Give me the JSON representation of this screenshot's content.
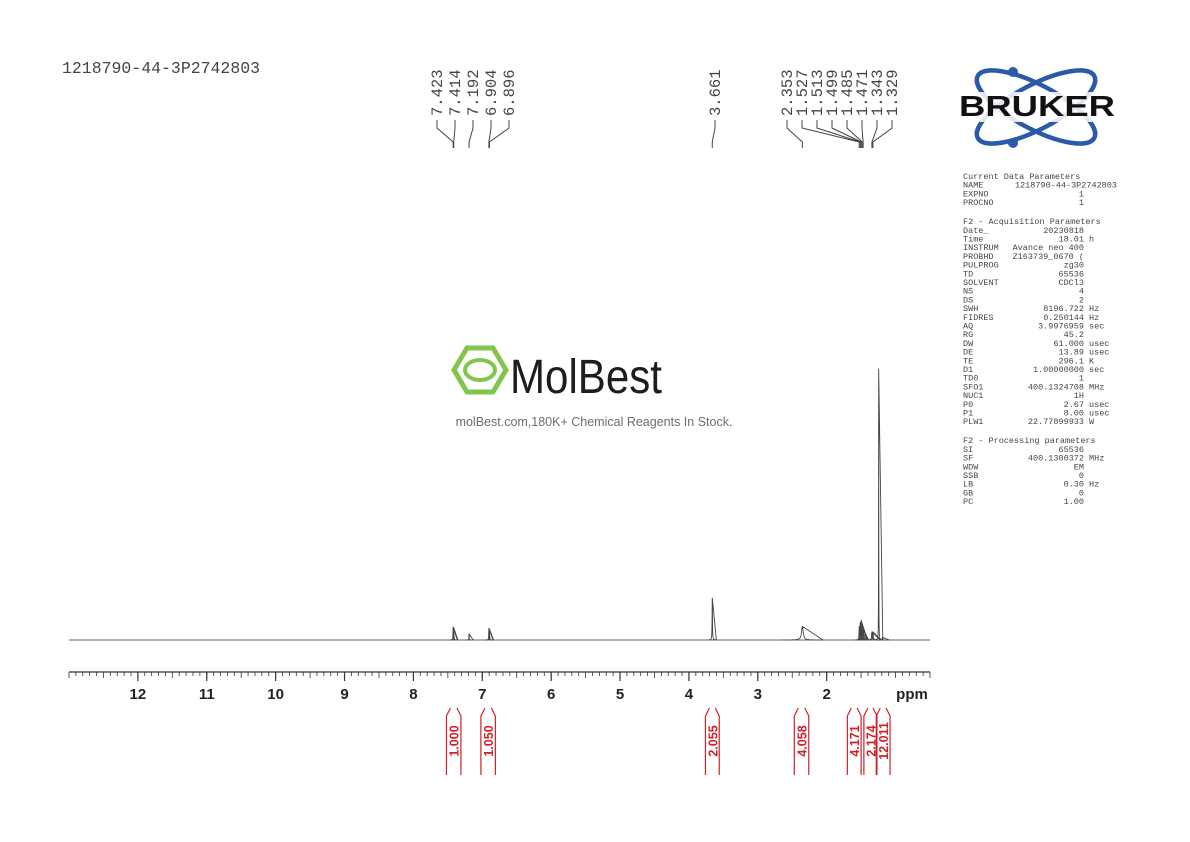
{
  "chart_data": {
    "type": "nmr",
    "title": "1218790-44-3P2742803",
    "x_label": "ppm",
    "xlim": [
      13.0,
      0.5
    ],
    "xticks": [
      12,
      11,
      10,
      9,
      8,
      7,
      6,
      5,
      4,
      3,
      2
    ],
    "minor_xtick_step": 0.1,
    "ylim": [
      0,
      100
    ],
    "peak_labels": [
      7.423,
      7.414,
      7.192,
      6.904,
      6.896,
      3.661,
      2.353,
      1.527,
      1.513,
      1.499,
      1.485,
      1.471,
      1.343,
      1.329
    ],
    "signals": [
      {
        "ppm": 7.423,
        "height": 4.8,
        "width": 0.003
      },
      {
        "ppm": 7.414,
        "height": 4.5,
        "width": 0.003
      },
      {
        "ppm": 7.192,
        "height": 2.3,
        "width": 0.003
      },
      {
        "ppm": 6.904,
        "height": 4.3,
        "width": 0.003
      },
      {
        "ppm": 6.896,
        "height": 4,
        "width": 0.003
      },
      {
        "ppm": 3.661,
        "height": 15.5,
        "width": 0.003
      },
      {
        "ppm": 2.353,
        "height": 5,
        "width": 0.015
      },
      {
        "ppm": 1.527,
        "height": 5,
        "width": 0.004
      },
      {
        "ppm": 1.513,
        "height": 6.5,
        "width": 0.004
      },
      {
        "ppm": 1.499,
        "height": 7.3,
        "width": 0.004
      },
      {
        "ppm": 1.485,
        "height": 6,
        "width": 0.004
      },
      {
        "ppm": 1.471,
        "height": 4,
        "width": 0.004
      },
      {
        "ppm": 1.343,
        "height": 3,
        "width": 0.006
      },
      {
        "ppm": 1.329,
        "height": 3,
        "width": 0.006
      },
      {
        "ppm": 1.245,
        "height": 100,
        "width": 0.0015
      },
      {
        "ppm": 1.19,
        "height": 1,
        "width": 0.005
      }
    ],
    "integrals": [
      {
        "value": 1,
        "label": "1.000",
        "range": [
          7.52,
          7.31
        ]
      },
      {
        "value": 1.05,
        "label": "1.050",
        "range": [
          7.02,
          6.81
        ]
      },
      {
        "value": 2.055,
        "label": "2.055",
        "range": [
          3.76,
          3.56
        ]
      },
      {
        "value": 4.058,
        "label": "4.058",
        "range": [
          2.47,
          2.26
        ]
      },
      {
        "value": 4.171,
        "label": "4.171",
        "range": [
          1.7,
          1.5
        ]
      },
      {
        "value": 2.174,
        "label": "2.174",
        "range": [
          1.46,
          1.27
        ]
      },
      {
        "value": 12.011,
        "label": "12.011",
        "range": [
          1.28,
          1.08
        ]
      }
    ]
  },
  "logo": "BRUKER",
  "watermark": {
    "brand": "MolBest",
    "tagline": "molBest.com,180K+ Chemical Reagents In Stock."
  },
  "parameters": [
    {
      "title": "Current Data Parameters",
      "rows": [
        [
          "NAME",
          "1218790-44-3P2742803",
          ""
        ],
        [
          "EXPNO",
          "1",
          ""
        ],
        [
          "PROCNO",
          "1",
          ""
        ]
      ]
    },
    {
      "title": "F2 - Acquisition Parameters",
      "rows": [
        [
          "Date_",
          "20230818",
          ""
        ],
        [
          "Time",
          "18.01",
          "h"
        ],
        [
          "INSTRUM",
          "Avance neo 400",
          ""
        ],
        [
          "PROBHD",
          "Z163739_0670 (",
          ""
        ],
        [
          "PULPROG",
          "zg30",
          ""
        ],
        [
          "TD",
          "65536",
          ""
        ],
        [
          "SOLVENT",
          "CDCl3",
          ""
        ],
        [
          "NS",
          "4",
          ""
        ],
        [
          "DS",
          "2",
          ""
        ],
        [
          "SWH",
          "8196.722",
          "Hz"
        ],
        [
          "FIDRES",
          "0.250144",
          "Hz"
        ],
        [
          "AQ",
          "3.9976959",
          "sec"
        ],
        [
          "RG",
          "45.2",
          ""
        ],
        [
          "DW",
          "61.000",
          "usec"
        ],
        [
          "DE",
          "13.89",
          "usec"
        ],
        [
          "TE",
          "296.1",
          "K"
        ],
        [
          "D1",
          "1.00000000",
          "sec"
        ],
        [
          "TD0",
          "1",
          ""
        ],
        [
          "SFO1",
          "400.1324708",
          "MHz"
        ],
        [
          "NUC1",
          "1H",
          ""
        ],
        [
          "P0",
          "2.67",
          "usec"
        ],
        [
          "P1",
          "8.00",
          "usec"
        ],
        [
          "PLW1",
          "22.77899933",
          "W"
        ]
      ]
    },
    {
      "title": "F2 - Processing parameters",
      "rows": [
        [
          "SI",
          "65536",
          ""
        ],
        [
          "SF",
          "400.1300372",
          "MHz"
        ],
        [
          "WDW",
          "EM",
          ""
        ],
        [
          "SSB",
          "0",
          ""
        ],
        [
          "LB",
          "0.30",
          "Hz"
        ],
        [
          "GB",
          "0",
          ""
        ],
        [
          "PC",
          "1.00",
          ""
        ]
      ]
    }
  ]
}
